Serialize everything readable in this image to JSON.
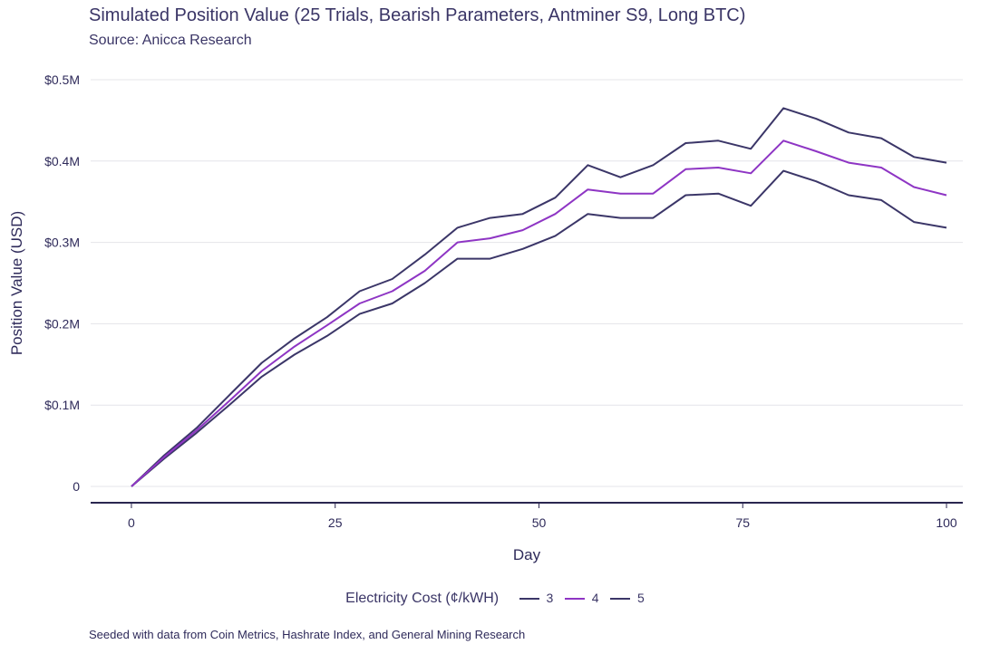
{
  "title": "Simulated Position Value (25 Trials, Bearish Parameters, Antminer S9, Long BTC)",
  "subtitle": "Source: Anicca Research",
  "caption": "Seeded with data from Coin Metrics, Hashrate Index, and General Mining Research",
  "legend": {
    "title": "Electricity Cost (¢/kWH)",
    "items": [
      {
        "label": "3",
        "color": "#3b3668"
      },
      {
        "label": "4",
        "color": "#8e35c4"
      },
      {
        "label": "5",
        "color": "#3b3668"
      }
    ]
  },
  "chart_data": {
    "type": "line",
    "xlabel": "Day",
    "ylabel": "Position Value (USD)",
    "xlim": [
      -5,
      102
    ],
    "ylim": [
      -0.02,
      0.52
    ],
    "xticks": [
      0,
      25,
      50,
      75,
      100
    ],
    "xtick_labels": [
      "0",
      "25",
      "50",
      "75",
      "100"
    ],
    "yticks": [
      0,
      0.1,
      0.2,
      0.3,
      0.4,
      0.5
    ],
    "ytick_labels": [
      "0",
      "$0.1M",
      "$0.2M",
      "$0.3M",
      "$0.4M",
      "$0.5M"
    ],
    "grid": true,
    "legend_position": "bottom",
    "x": [
      0,
      4,
      8,
      12,
      16,
      20,
      24,
      28,
      32,
      36,
      40,
      44,
      48,
      52,
      56,
      60,
      64,
      68,
      72,
      76,
      80,
      84,
      88,
      92,
      96,
      100
    ],
    "series": [
      {
        "name": "3",
        "color": "#3b3668",
        "values": [
          0.0,
          0.038,
          0.072,
          0.112,
          0.152,
          0.182,
          0.208,
          0.24,
          0.255,
          0.285,
          0.318,
          0.33,
          0.335,
          0.355,
          0.395,
          0.38,
          0.395,
          0.422,
          0.425,
          0.415,
          0.465,
          0.452,
          0.435,
          0.428,
          0.405,
          0.398
        ]
      },
      {
        "name": "4",
        "color": "#8e35c4",
        "values": [
          0.0,
          0.036,
          0.069,
          0.105,
          0.142,
          0.172,
          0.198,
          0.225,
          0.24,
          0.265,
          0.3,
          0.305,
          0.315,
          0.335,
          0.365,
          0.36,
          0.36,
          0.39,
          0.392,
          0.385,
          0.425,
          0.412,
          0.398,
          0.392,
          0.368,
          0.358
        ]
      },
      {
        "name": "5",
        "color": "#3b3668",
        "values": [
          0.0,
          0.034,
          0.066,
          0.1,
          0.135,
          0.162,
          0.185,
          0.212,
          0.225,
          0.25,
          0.28,
          0.28,
          0.292,
          0.308,
          0.335,
          0.33,
          0.33,
          0.358,
          0.36,
          0.345,
          0.388,
          0.375,
          0.358,
          0.352,
          0.325,
          0.318
        ]
      }
    ]
  }
}
